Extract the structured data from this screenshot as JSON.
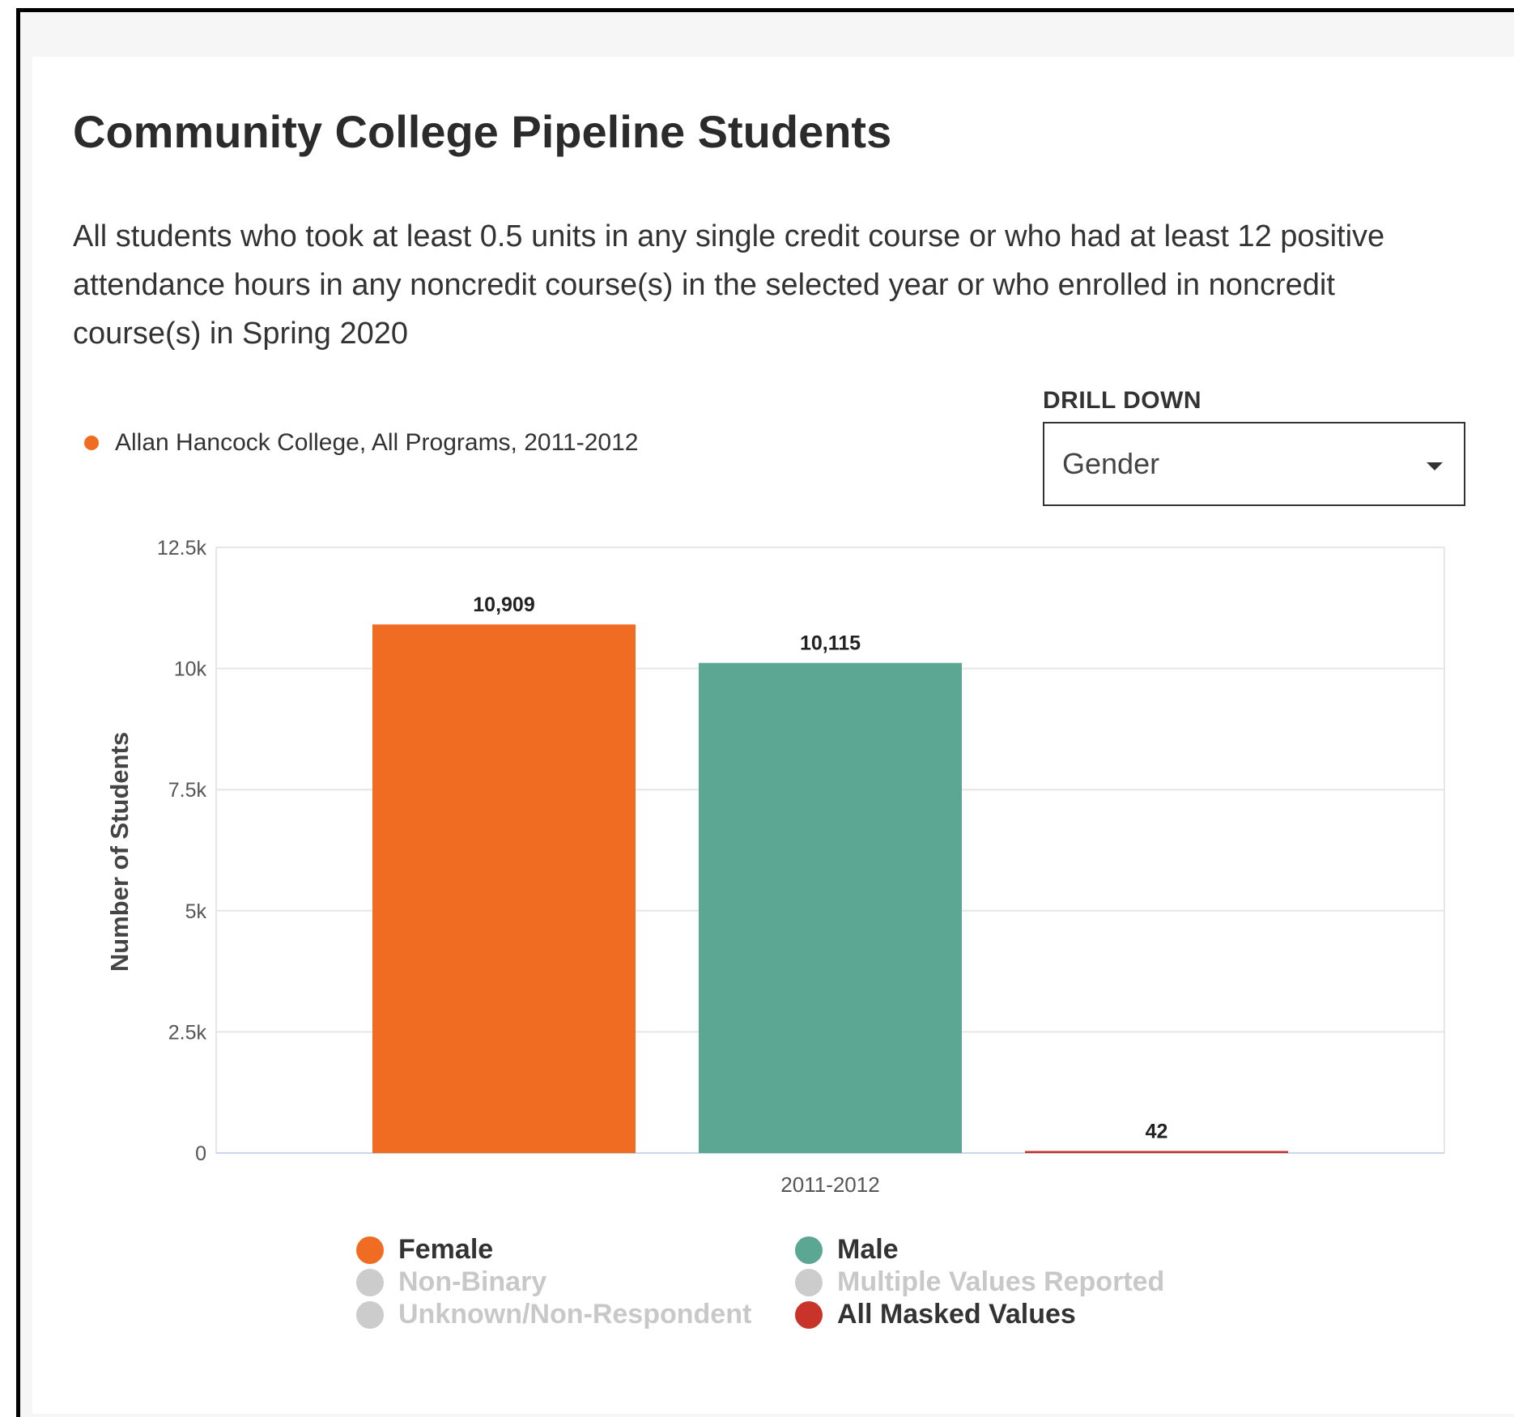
{
  "title": "Community College Pipeline Students",
  "description": "All students who took at least 0.5 units in any single credit course or who had at least 12 positive attendance hours in any noncredit course(s) in the selected year or who enrolled in noncredit course(s) in Spring 2020",
  "series_legend": {
    "label": "Allan Hancock College, All Programs, 2011-2012",
    "color": "#f06c23"
  },
  "drill_down": {
    "label": "DRILL DOWN",
    "selected": "Gender"
  },
  "chart_data": {
    "type": "bar",
    "categories": [
      "2011-2012"
    ],
    "ylabel": "Number of Students",
    "xlabel": "",
    "ylim": [
      0,
      12500
    ],
    "y_ticks": [
      0,
      2500,
      5000,
      7500,
      10000,
      12500
    ],
    "y_tick_labels": [
      "0",
      "2.5k",
      "5k",
      "7.5k",
      "10k",
      "12.5k"
    ],
    "grid": true,
    "legend_position": "bottom",
    "series": [
      {
        "name": "Female",
        "values": [
          10909
        ],
        "value_label": "10,909",
        "color": "#f06c23",
        "active": true
      },
      {
        "name": "Male",
        "values": [
          10115
        ],
        "value_label": "10,115",
        "color": "#5ca793",
        "active": true
      },
      {
        "name": "All Masked Values",
        "values": [
          42
        ],
        "value_label": "42",
        "color": "#c9342a",
        "active": true
      }
    ],
    "legend_items": [
      {
        "name": "Female",
        "color": "#f06c23",
        "active": true
      },
      {
        "name": "Male",
        "color": "#5ca793",
        "active": true
      },
      {
        "name": "Non-Binary",
        "color": "#cccccc",
        "active": false
      },
      {
        "name": "Multiple Values Reported",
        "color": "#cccccc",
        "active": false
      },
      {
        "name": "Unknown/Non-Respondent",
        "color": "#cccccc",
        "active": false
      },
      {
        "name": "All Masked Values",
        "color": "#c9342a",
        "active": true
      }
    ]
  }
}
